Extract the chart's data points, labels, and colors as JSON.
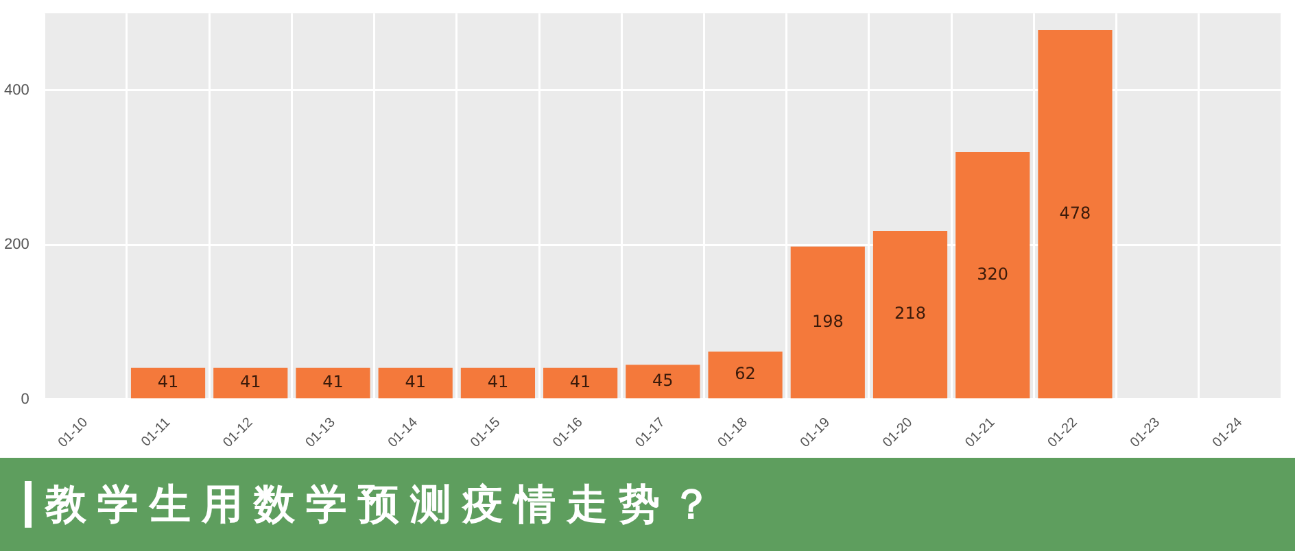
{
  "chart_data": {
    "type": "bar",
    "title": "教学生用数学预测疫情走势？",
    "categories": [
      "01-10",
      "01-11",
      "01-12",
      "01-13",
      "01-14",
      "01-15",
      "01-16",
      "01-17",
      "01-18",
      "01-19",
      "01-20",
      "01-21",
      "01-22",
      "01-23",
      "01-24"
    ],
    "values": [
      null,
      41,
      41,
      41,
      41,
      41,
      41,
      45,
      62,
      198,
      218,
      320,
      478,
      null,
      null
    ],
    "color": "#f4793b",
    "ylim": [
      0,
      500
    ],
    "yticks": [
      0,
      200,
      400
    ],
    "grid": true,
    "data_labels": true,
    "legend": false
  }
}
